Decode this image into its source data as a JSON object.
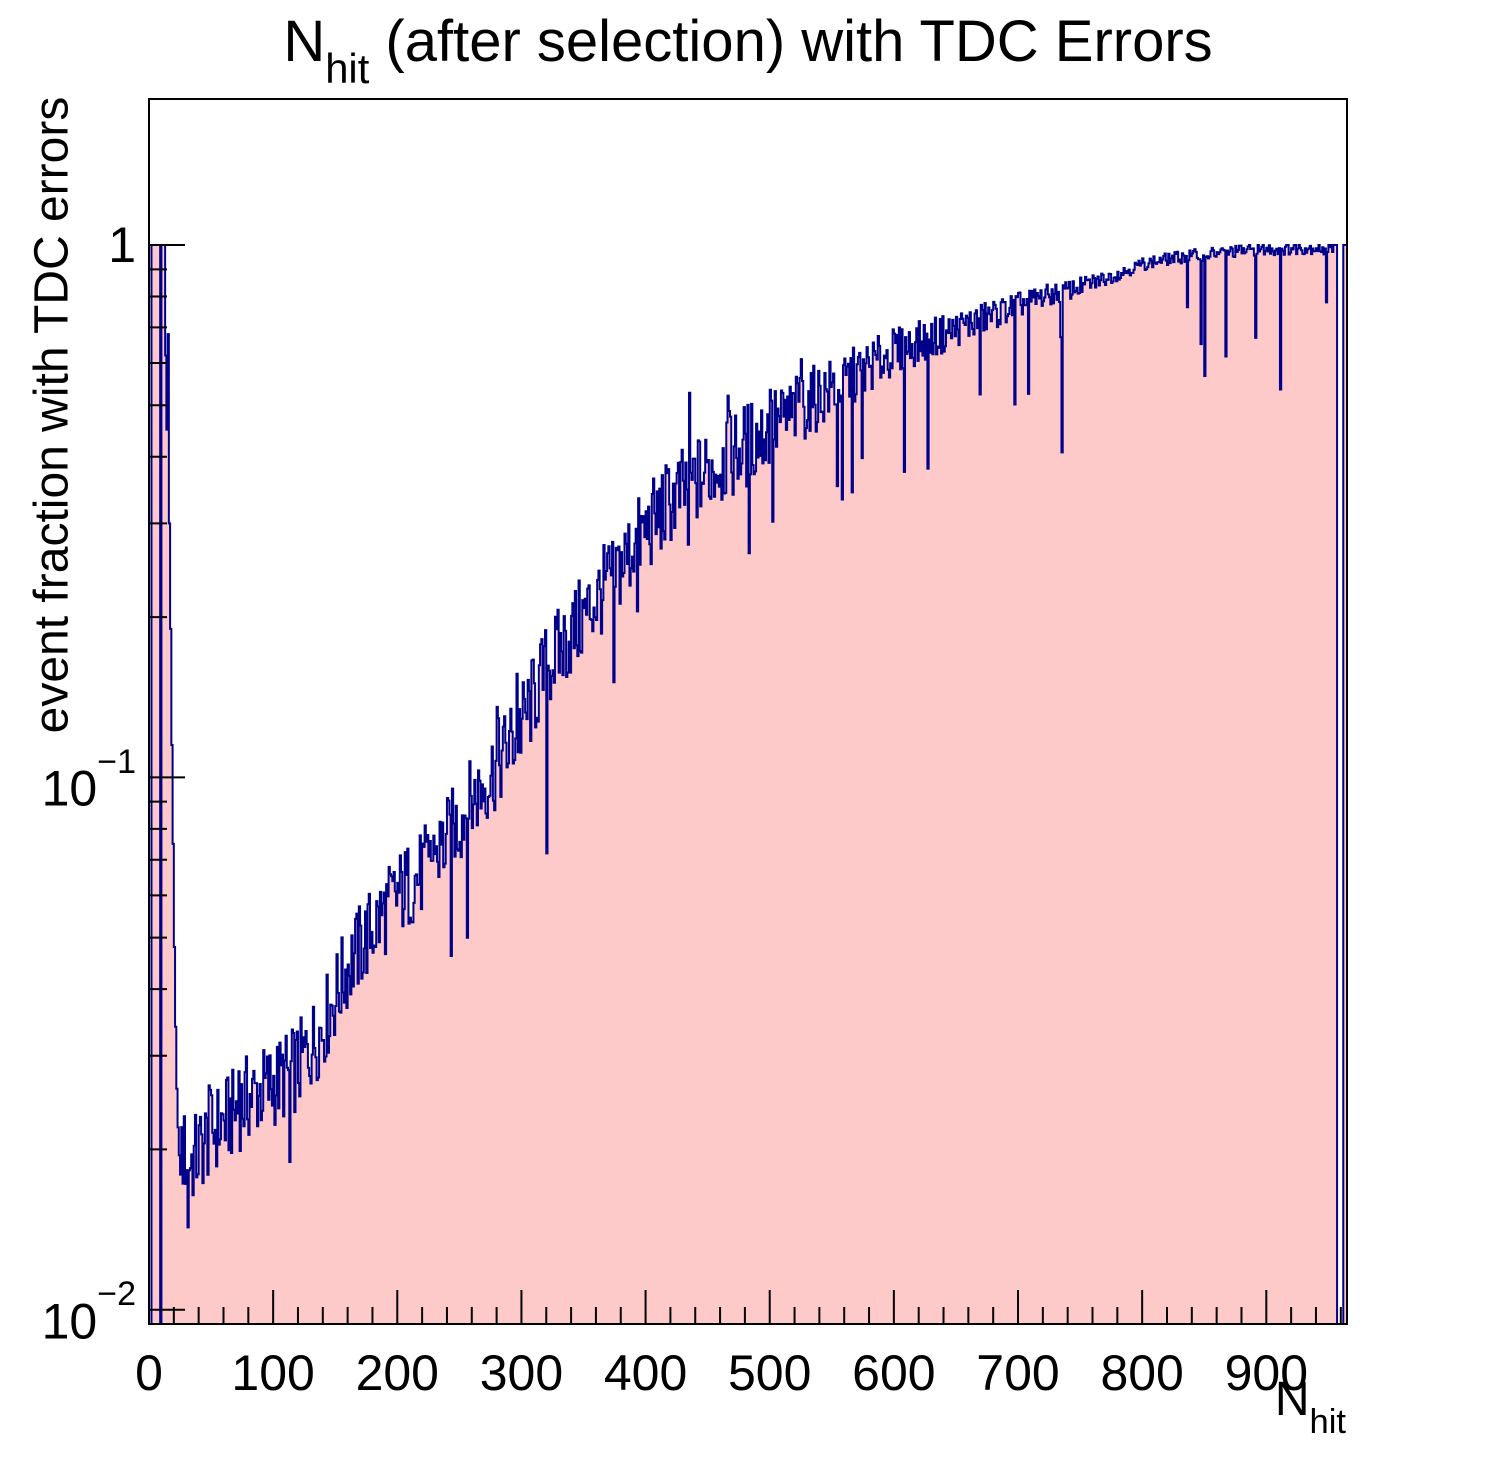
{
  "title": {
    "main": "N",
    "sub": "hit",
    "rest": " (after selection) with TDC Errors"
  },
  "x_axis": {
    "title_main": "N",
    "title_sub": "hit",
    "major_ticks": [
      0,
      100,
      200,
      300,
      400,
      500,
      600,
      700,
      800,
      900
    ],
    "minor_tick_step": 20,
    "major_tick_step": 100
  },
  "y_axis": {
    "title": "event fraction with TDC errors",
    "scale": "log",
    "major_ticks": [
      1,
      0.1,
      0.01
    ],
    "minor_tick_decades": [
      0.01,
      0.1
    ],
    "tick_labels": [
      {
        "value": 1,
        "base": "1",
        "exponent": ""
      },
      {
        "value": 0.1,
        "base": "10",
        "exponent": "−1"
      },
      {
        "value": 0.01,
        "base": "10",
        "exponent": "−2"
      }
    ]
  },
  "chart_data": {
    "type": "bar",
    "style": "filled-step-histogram",
    "title": "N_hit (after selection) with TDC Errors",
    "xlabel": "N_hit",
    "ylabel": "event fraction with TDC errors",
    "y_scale": "log",
    "x_min": 0,
    "x_max": 965,
    "bin_width": 1,
    "y_min": 0.0094,
    "y_max": 1.88,
    "fill_color": "#fdc9c9",
    "line_color": "#00008b",
    "explicit_bins_head": [
      [
        0,
        0
      ],
      [
        1,
        0
      ],
      [
        2,
        1
      ],
      [
        3,
        1
      ],
      [
        4,
        1
      ],
      [
        5,
        1
      ],
      [
        6,
        1
      ],
      [
        7,
        1
      ],
      [
        8,
        1
      ],
      [
        9,
        0
      ],
      [
        10,
        1
      ],
      [
        11,
        1
      ],
      [
        12,
        1
      ],
      [
        13,
        0.62
      ],
      [
        14,
        0.45
      ],
      [
        15,
        0.68
      ],
      [
        16,
        0.3
      ],
      [
        17,
        0.19
      ],
      [
        18,
        0.115
      ],
      [
        19,
        0.075
      ],
      [
        20,
        0.048
      ],
      [
        21,
        0.034
      ],
      [
        22,
        0.026
      ],
      [
        23,
        0.022
      ],
      [
        24,
        0.0195
      ]
    ],
    "trend_points": [
      [
        25,
        0.02
      ],
      [
        35,
        0.019
      ],
      [
        50,
        0.0215
      ],
      [
        65,
        0.023
      ],
      [
        80,
        0.025
      ],
      [
        100,
        0.0265
      ],
      [
        120,
        0.0285
      ],
      [
        140,
        0.034
      ],
      [
        160,
        0.044
      ],
      [
        180,
        0.052
      ],
      [
        200,
        0.06
      ],
      [
        220,
        0.066
      ],
      [
        240,
        0.076
      ],
      [
        260,
        0.09
      ],
      [
        280,
        0.105
      ],
      [
        300,
        0.125
      ],
      [
        320,
        0.16
      ],
      [
        340,
        0.185
      ],
      [
        360,
        0.215
      ],
      [
        380,
        0.25
      ],
      [
        400,
        0.29
      ],
      [
        420,
        0.33
      ],
      [
        440,
        0.36
      ],
      [
        460,
        0.39
      ],
      [
        480,
        0.42
      ],
      [
        500,
        0.45
      ],
      [
        520,
        0.485
      ],
      [
        540,
        0.52
      ],
      [
        560,
        0.555
      ],
      [
        580,
        0.59
      ],
      [
        600,
        0.63
      ],
      [
        620,
        0.655
      ],
      [
        640,
        0.68
      ],
      [
        660,
        0.71
      ],
      [
        680,
        0.74
      ],
      [
        700,
        0.77
      ],
      [
        720,
        0.8
      ],
      [
        740,
        0.82
      ],
      [
        760,
        0.85
      ],
      [
        780,
        0.88
      ],
      [
        800,
        0.92
      ],
      [
        820,
        0.94
      ],
      [
        840,
        0.955
      ],
      [
        860,
        0.965
      ],
      [
        880,
        0.975
      ],
      [
        900,
        0.98
      ],
      [
        920,
        0.985
      ],
      [
        940,
        0.988
      ]
    ],
    "explicit_bins_tail": [
      [
        944,
        0.97
      ],
      [
        945,
        0.99
      ],
      [
        946,
        0.96
      ],
      [
        947,
        0.985
      ],
      [
        948,
        0.78
      ],
      [
        949,
        0.97
      ],
      [
        950,
        1
      ],
      [
        951,
        0.99
      ],
      [
        952,
        1
      ],
      [
        953,
        0.97
      ],
      [
        954,
        1
      ],
      [
        955,
        1
      ],
      [
        956,
        1
      ],
      [
        957,
        0
      ],
      [
        958,
        0
      ],
      [
        959,
        0
      ],
      [
        960,
        0
      ],
      [
        961,
        0
      ],
      [
        962,
        1
      ],
      [
        963,
        1
      ],
      [
        964,
        1
      ]
    ],
    "noise": {
      "max_log10_amp": 0.085,
      "dip_probability": 0.04,
      "spike_probability": 0.03
    }
  }
}
